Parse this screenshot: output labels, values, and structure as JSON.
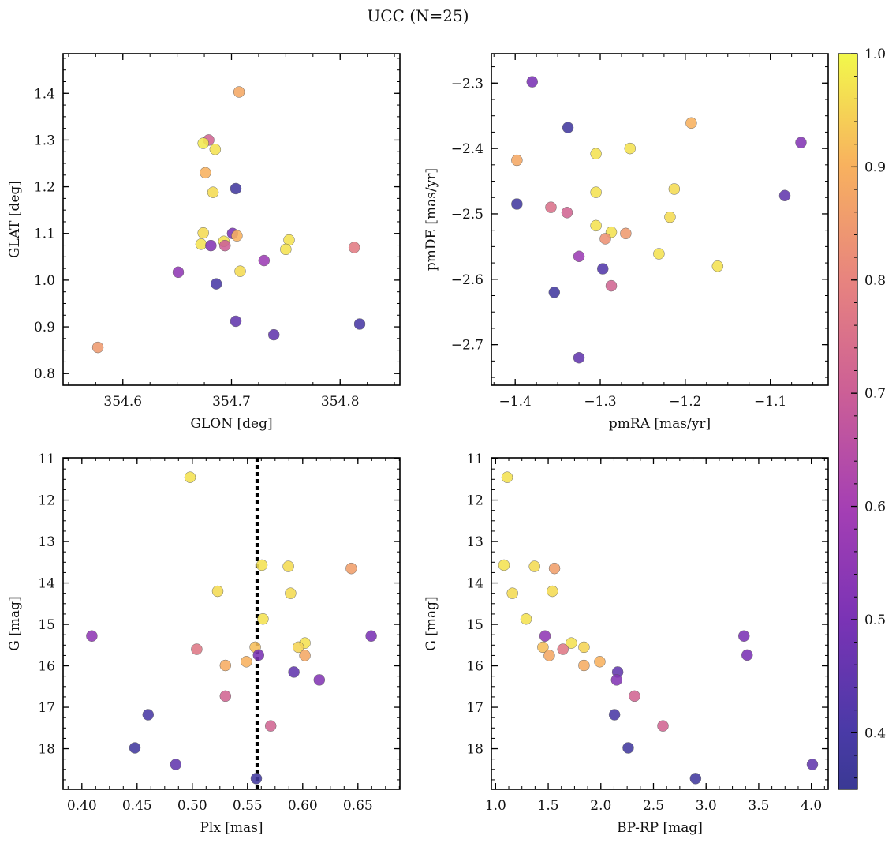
{
  "figure": {
    "title": "UCC (N=25)"
  },
  "colorbar": {
    "cmap": "plasma",
    "range": [
      0.35,
      1.0
    ],
    "ticks": [
      0.4,
      0.5,
      0.6,
      0.7,
      0.8,
      0.9,
      1.0
    ],
    "tick_labels": [
      "0.4",
      "0.5",
      "0.6",
      "0.7",
      "0.8",
      "0.9",
      "1.0"
    ]
  },
  "chart_data": [
    {
      "type": "scatter",
      "xlabel": "GLON [deg]",
      "ylabel": "GLAT [deg]",
      "xlim": [
        354.545,
        354.855
      ],
      "ylim": [
        0.775,
        1.485
      ],
      "xticks": [
        354.6,
        354.7,
        354.8
      ],
      "xtick_labels": [
        "354.6",
        "354.7",
        "354.8"
      ],
      "yticks": [
        0.8,
        0.9,
        1.0,
        1.1,
        1.2,
        1.3,
        1.4
      ],
      "ytick_labels": [
        "0.8",
        "0.9",
        "1.0",
        "1.1",
        "1.2",
        "1.3",
        "1.4"
      ],
      "yinvert": false,
      "x": [
        354.707,
        354.679,
        354.674,
        354.685,
        354.676,
        354.683,
        354.704,
        354.674,
        354.701,
        354.705,
        354.693,
        354.672,
        354.681,
        354.694,
        354.753,
        354.75,
        354.813,
        354.708,
        354.73,
        354.651,
        354.686,
        354.704,
        354.739,
        354.818,
        354.577
      ],
      "y": [
        1.403,
        1.3,
        1.293,
        1.28,
        1.23,
        1.188,
        1.196,
        1.101,
        1.1,
        1.095,
        1.083,
        1.077,
        1.074,
        1.074,
        1.086,
        1.066,
        1.07,
        1.019,
        1.042,
        1.017,
        0.992,
        0.912,
        0.883,
        0.906,
        0.856
      ],
      "color_values": [
        0.88,
        0.72,
        0.98,
        0.97,
        0.9,
        0.96,
        0.38,
        0.96,
        0.5,
        0.9,
        0.97,
        0.97,
        0.52,
        0.7,
        0.97,
        0.97,
        0.78,
        0.96,
        0.58,
        0.55,
        0.4,
        0.45,
        0.45,
        0.4,
        0.85
      ]
    },
    {
      "type": "scatter",
      "xlabel": "pmRA [mas/yr]",
      "ylabel": "pmDE [mas/yr]",
      "xlim": [
        -1.428,
        -1.032
      ],
      "ylim": [
        -2.762,
        -2.255
      ],
      "xticks": [
        -1.4,
        -1.3,
        -1.2,
        -1.1
      ],
      "xtick_labels": [
        "−1.4",
        "−1.3",
        "−1.2",
        "−1.1"
      ],
      "yticks": [
        -2.7,
        -2.6,
        -2.5,
        -2.4,
        -2.3
      ],
      "ytick_labels": [
        "−2.7",
        "−2.6",
        "−2.5",
        "−2.4",
        "−2.3"
      ],
      "yinvert": false,
      "x": [
        -1.38,
        -1.338,
        -1.193,
        -1.064,
        -1.305,
        -1.265,
        -1.398,
        -1.305,
        -1.213,
        -1.398,
        -1.358,
        -1.339,
        -1.083,
        -1.218,
        -1.305,
        -1.287,
        -1.27,
        -1.294,
        -1.325,
        -1.231,
        -1.162,
        -1.297,
        -1.287,
        -1.354,
        -1.325
      ],
      "y": [
        -2.298,
        -2.368,
        -2.361,
        -2.391,
        -2.408,
        -2.4,
        -2.418,
        -2.467,
        -2.462,
        -2.485,
        -2.49,
        -2.498,
        -2.472,
        -2.505,
        -2.518,
        -2.528,
        -2.53,
        -2.538,
        -2.565,
        -2.561,
        -2.58,
        -2.584,
        -2.61,
        -2.62,
        -2.72
      ],
      "color_values": [
        0.5,
        0.38,
        0.9,
        0.52,
        0.97,
        0.97,
        0.88,
        0.97,
        0.96,
        0.38,
        0.75,
        0.72,
        0.45,
        0.96,
        0.97,
        0.97,
        0.85,
        0.83,
        0.58,
        0.97,
        0.97,
        0.42,
        0.72,
        0.38,
        0.45
      ]
    },
    {
      "type": "scatter",
      "xlabel": "Plx [mas]",
      "ylabel": "G [mag]",
      "xlim": [
        0.383,
        0.688
      ],
      "ylim": [
        18.98,
        10.98
      ],
      "xticks": [
        0.4,
        0.45,
        0.5,
        0.55,
        0.6,
        0.65
      ],
      "xtick_labels": [
        "0.40",
        "0.45",
        "0.50",
        "0.55",
        "0.60",
        "0.65"
      ],
      "yticks": [
        11,
        12,
        13,
        14,
        15,
        16,
        17,
        18
      ],
      "ytick_labels": [
        "11",
        "12",
        "13",
        "14",
        "15",
        "16",
        "17",
        "18"
      ],
      "yinvert": true,
      "vline": {
        "x": 0.559,
        "style": "dotted"
      },
      "x": [
        0.498,
        0.563,
        0.587,
        0.644,
        0.523,
        0.589,
        0.564,
        0.409,
        0.662,
        0.602,
        0.504,
        0.557,
        0.596,
        0.602,
        0.56,
        0.549,
        0.53,
        0.592,
        0.615,
        0.53,
        0.571,
        0.46,
        0.448,
        0.485,
        0.558
      ],
      "y": [
        11.45,
        13.57,
        13.6,
        13.65,
        14.2,
        14.25,
        14.87,
        15.28,
        15.28,
        15.45,
        15.6,
        15.55,
        15.55,
        15.75,
        15.74,
        15.9,
        15.99,
        16.15,
        16.34,
        16.73,
        17.45,
        17.18,
        17.98,
        18.38,
        18.72
      ],
      "color_values": [
        0.97,
        0.97,
        0.96,
        0.86,
        0.96,
        0.96,
        0.97,
        0.55,
        0.5,
        0.97,
        0.77,
        0.92,
        0.95,
        0.88,
        0.5,
        0.9,
        0.89,
        0.45,
        0.52,
        0.72,
        0.72,
        0.4,
        0.38,
        0.45,
        0.38
      ]
    },
    {
      "type": "scatter",
      "xlabel": "BP-RP [mag]",
      "ylabel": "G [mag]",
      "xlim": [
        0.96,
        4.16
      ],
      "ylim": [
        18.98,
        10.98
      ],
      "xticks": [
        1.0,
        1.5,
        2.0,
        2.5,
        3.0,
        3.5,
        4.0
      ],
      "xtick_labels": [
        "1.0",
        "1.5",
        "2.0",
        "2.5",
        "3.0",
        "3.5",
        "4.0"
      ],
      "yticks": [
        11,
        12,
        13,
        14,
        15,
        16,
        17,
        18
      ],
      "ytick_labels": [
        "11",
        "12",
        "13",
        "14",
        "15",
        "16",
        "17",
        "18"
      ],
      "yinvert": true,
      "x": [
        1.11,
        1.08,
        1.37,
        1.56,
        1.16,
        1.54,
        1.29,
        1.47,
        3.36,
        1.72,
        1.64,
        1.45,
        1.84,
        1.51,
        3.39,
        1.99,
        1.84,
        2.16,
        2.15,
        2.32,
        2.59,
        2.13,
        2.26,
        4.01,
        2.9
      ],
      "y": [
        11.45,
        13.57,
        13.6,
        13.65,
        14.25,
        14.2,
        14.87,
        15.28,
        15.28,
        15.45,
        15.6,
        15.55,
        15.55,
        15.75,
        15.74,
        15.9,
        15.99,
        16.15,
        16.34,
        16.73,
        17.45,
        17.18,
        17.98,
        18.38,
        18.72
      ],
      "color_values": [
        0.97,
        0.97,
        0.96,
        0.86,
        0.96,
        0.96,
        0.97,
        0.55,
        0.5,
        0.97,
        0.77,
        0.92,
        0.95,
        0.88,
        0.5,
        0.9,
        0.89,
        0.45,
        0.52,
        0.72,
        0.72,
        0.4,
        0.38,
        0.45,
        0.38
      ]
    }
  ]
}
